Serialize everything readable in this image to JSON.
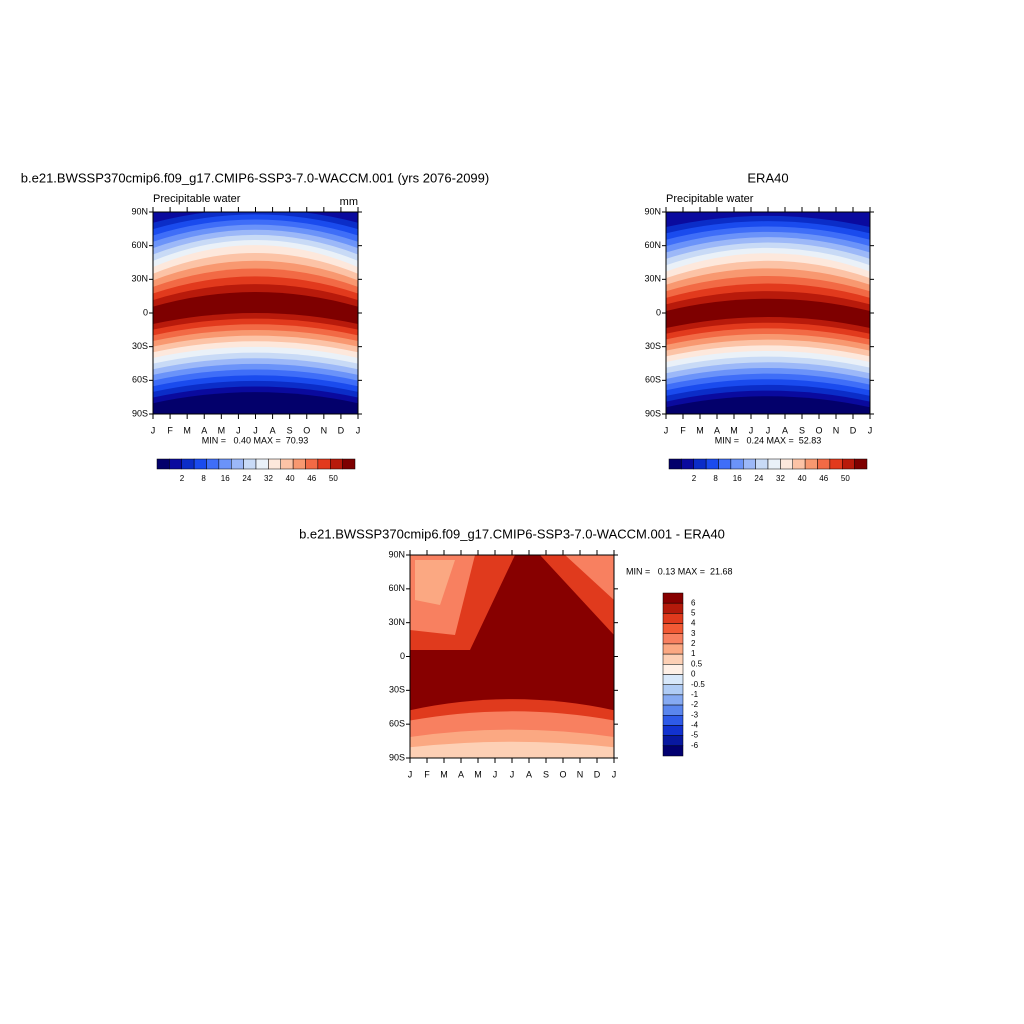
{
  "panels": [
    {
      "title": "b.e21.BWSSP370cmip6.f09_g17.CMIP6-SSP3-7.0-WACCM.001 (yrs 2076-2099)",
      "subtitle_left": "Precipitable water",
      "subtitle_right": "mm",
      "y_labels": [
        "90N",
        "60N",
        "30N",
        "0",
        "30S",
        "60S",
        "90S"
      ],
      "x_labels": [
        "J",
        "F",
        "M",
        "A",
        "M",
        "J",
        "J",
        "A",
        "S",
        "O",
        "N",
        "D",
        "J"
      ],
      "stats": "MIN =   0.40 MAX =  70.93",
      "colorbar": {
        "labels": [
          "2",
          "8",
          "16",
          "24",
          "32",
          "40",
          "46",
          "50"
        ],
        "colors": [
          "#03006b",
          "#0a0a9e",
          "#0b2dc8",
          "#1a4bee",
          "#3f6ef8",
          "#6b93f9",
          "#9cb8f8",
          "#c8daf6",
          "#eaf1f8",
          "#fde8dc",
          "#fcc3a6",
          "#f89870",
          "#f26a45",
          "#e23a1d",
          "#b81a0b",
          "#7e0000"
        ]
      }
    },
    {
      "title": "ERA40",
      "subtitle_left": "Precipitable water",
      "y_labels": [
        "90N",
        "60N",
        "30N",
        "0",
        "30S",
        "60S",
        "90S"
      ],
      "x_labels": [
        "J",
        "F",
        "M",
        "A",
        "M",
        "J",
        "J",
        "A",
        "S",
        "O",
        "N",
        "D",
        "J"
      ],
      "stats": "MIN =   0.24 MAX =  52.83",
      "colorbar": {
        "labels": [
          "2",
          "8",
          "16",
          "24",
          "32",
          "40",
          "46",
          "50"
        ],
        "colors": [
          "#03006b",
          "#0a0a9e",
          "#0b2dc8",
          "#1a4bee",
          "#3f6ef8",
          "#6b93f9",
          "#9cb8f8",
          "#c8daf6",
          "#eaf1f8",
          "#fde8dc",
          "#fcc3a6",
          "#f89870",
          "#f26a45",
          "#e23a1d",
          "#b81a0b",
          "#7e0000"
        ]
      }
    },
    {
      "title": "b.e21.BWSSP370cmip6.f09_g17.CMIP6-SSP3-7.0-WACCM.001 - ERA40",
      "y_labels": [
        "90N",
        "60N",
        "30N",
        "0",
        "30S",
        "60S",
        "90S"
      ],
      "x_labels": [
        "J",
        "F",
        "M",
        "A",
        "M",
        "J",
        "J",
        "A",
        "S",
        "O",
        "N",
        "D",
        "J"
      ],
      "stats": "MIN =   0.13 MAX =  21.68",
      "colorbar": {
        "labels": [
          "6",
          "5",
          "4",
          "3",
          "2",
          "1",
          "0.5",
          "0",
          "-0.5",
          "-1",
          "-2",
          "-3",
          "-4",
          "-5",
          "-6"
        ],
        "colors": [
          "#870000",
          "#b41a0b",
          "#e03a1d",
          "#f25a35",
          "#f88060",
          "#fba882",
          "#fdd0b5",
          "#fff0e6",
          "#d8e8fa",
          "#b0ccf5",
          "#86aaf2",
          "#5a86ee",
          "#2e5ae8",
          "#1232d0",
          "#0818a0",
          "#020070"
        ]
      }
    }
  ]
}
